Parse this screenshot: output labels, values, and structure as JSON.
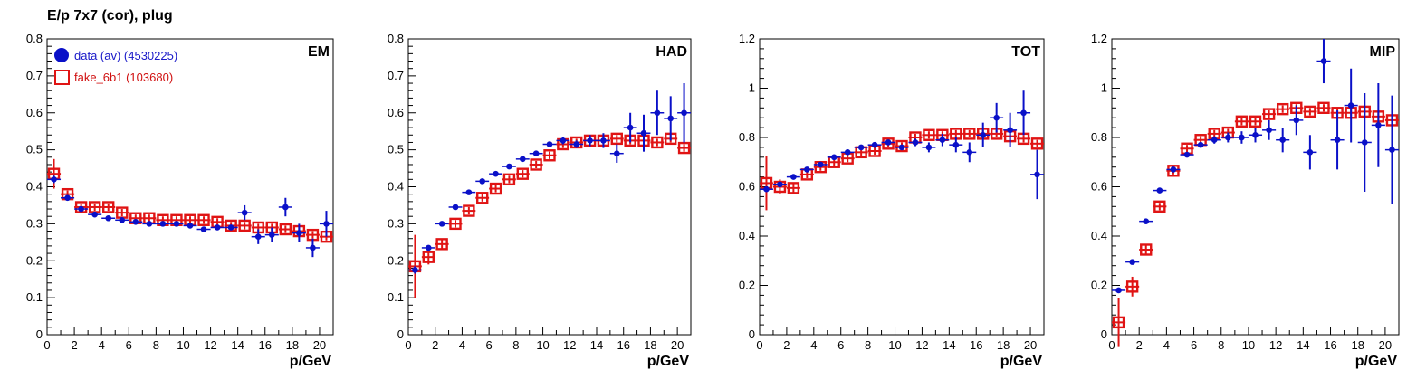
{
  "page_title": "E/p 7x7 (cor), plug",
  "colors": {
    "data": "#0a10c8",
    "fake": "#e01414",
    "axis": "#000000",
    "legend_data": "#1818c8",
    "legend_fake": "#d01010"
  },
  "legend": {
    "data_label": "data (av) (4530225)",
    "fake_label": "fake_6b1 (103680)"
  },
  "chart_data": [
    {
      "type": "scatter",
      "title": "EM",
      "xlabel": "p/GeV",
      "xlim": [
        0,
        21
      ],
      "ylim": [
        0,
        0.8
      ],
      "x_ticks": [
        0,
        2,
        4,
        6,
        8,
        10,
        12,
        14,
        16,
        18,
        20
      ],
      "y_ticks": [
        0,
        0.1,
        0.2,
        0.3,
        0.4,
        0.5,
        0.6,
        0.7,
        0.8
      ],
      "y_tick_labels": [
        "0",
        "0.1",
        "0.2",
        "0.3",
        "0.4",
        "0.5",
        "0.6",
        "0.7",
        "0.8"
      ],
      "x": [
        0.5,
        1.5,
        2.5,
        3.5,
        4.5,
        5.5,
        6.5,
        7.5,
        8.5,
        9.5,
        10.5,
        11.5,
        12.5,
        13.5,
        14.5,
        15.5,
        16.5,
        17.5,
        18.5,
        19.5,
        20.5
      ],
      "series": [
        {
          "name": "data (av) (4530225)",
          "values": [
            0.42,
            0.37,
            0.34,
            0.325,
            0.315,
            0.31,
            0.305,
            0.3,
            0.3,
            0.3,
            0.295,
            0.285,
            0.29,
            0.29,
            0.33,
            0.265,
            0.27,
            0.345,
            0.275,
            0.235,
            0.3
          ],
          "errors": [
            0.01,
            0.005,
            0.005,
            0.005,
            0.005,
            0.005,
            0.005,
            0.005,
            0.005,
            0.005,
            0.005,
            0.005,
            0.006,
            0.007,
            0.02,
            0.02,
            0.02,
            0.025,
            0.025,
            0.025,
            0.035
          ]
        },
        {
          "name": "fake_6b1 (103680)",
          "values": [
            0.435,
            0.38,
            0.345,
            0.345,
            0.345,
            0.33,
            0.315,
            0.315,
            0.31,
            0.31,
            0.31,
            0.31,
            0.305,
            0.295,
            0.295,
            0.29,
            0.29,
            0.285,
            0.28,
            0.27,
            0.265
          ],
          "errors": [
            0.04,
            0.01,
            0.01,
            0.01,
            0.01,
            0.01,
            0.01,
            0.01,
            0.01,
            0.01,
            0.01,
            0.01,
            0.01,
            0.01,
            0.01,
            0.01,
            0.01,
            0.01,
            0.01,
            0.01,
            0.01
          ]
        }
      ]
    },
    {
      "type": "scatter",
      "title": "HAD",
      "xlabel": "p/GeV",
      "xlim": [
        0,
        21
      ],
      "ylim": [
        0,
        0.8
      ],
      "x_ticks": [
        0,
        2,
        4,
        6,
        8,
        10,
        12,
        14,
        16,
        18,
        20
      ],
      "y_ticks": [
        0,
        0.1,
        0.2,
        0.3,
        0.4,
        0.5,
        0.6,
        0.7,
        0.8
      ],
      "y_tick_labels": [
        "0",
        "0.1",
        "0.2",
        "0.3",
        "0.4",
        "0.5",
        "0.6",
        "0.7",
        "0.8"
      ],
      "x": [
        0.5,
        1.5,
        2.5,
        3.5,
        4.5,
        5.5,
        6.5,
        7.5,
        8.5,
        9.5,
        10.5,
        11.5,
        12.5,
        13.5,
        14.5,
        15.5,
        16.5,
        17.5,
        18.5,
        19.5,
        20.5
      ],
      "series": [
        {
          "name": "data (av) (4530225)",
          "values": [
            0.175,
            0.235,
            0.3,
            0.345,
            0.385,
            0.415,
            0.435,
            0.455,
            0.475,
            0.49,
            0.515,
            0.525,
            0.515,
            0.525,
            0.525,
            0.49,
            0.56,
            0.545,
            0.6,
            0.585,
            0.6
          ],
          "errors": [
            0.01,
            0.005,
            0.005,
            0.005,
            0.005,
            0.005,
            0.005,
            0.005,
            0.005,
            0.005,
            0.005,
            0.01,
            0.01,
            0.015,
            0.02,
            0.025,
            0.04,
            0.05,
            0.06,
            0.06,
            0.08
          ]
        },
        {
          "name": "fake_6b1 (103680)",
          "values": [
            0.185,
            0.21,
            0.245,
            0.3,
            0.335,
            0.37,
            0.395,
            0.42,
            0.435,
            0.46,
            0.485,
            0.515,
            0.52,
            0.525,
            0.525,
            0.53,
            0.525,
            0.525,
            0.52,
            0.53,
            0.505
          ],
          "errors": [
            0.085,
            0.02,
            0.015,
            0.01,
            0.01,
            0.01,
            0.01,
            0.01,
            0.01,
            0.01,
            0.01,
            0.01,
            0.01,
            0.01,
            0.01,
            0.01,
            0.01,
            0.01,
            0.01,
            0.01,
            0.01
          ]
        }
      ]
    },
    {
      "type": "scatter",
      "title": "TOT",
      "xlabel": "p/GeV",
      "xlim": [
        0,
        21
      ],
      "ylim": [
        0,
        1.2
      ],
      "x_ticks": [
        0,
        2,
        4,
        6,
        8,
        10,
        12,
        14,
        16,
        18,
        20
      ],
      "y_ticks": [
        0,
        0.2,
        0.4,
        0.6,
        0.8,
        1.0,
        1.2
      ],
      "y_tick_labels": [
        "0",
        "0.2",
        "0.4",
        "0.6",
        "0.8",
        "1",
        "1.2"
      ],
      "x": [
        0.5,
        1.5,
        2.5,
        3.5,
        4.5,
        5.5,
        6.5,
        7.5,
        8.5,
        9.5,
        10.5,
        11.5,
        12.5,
        13.5,
        14.5,
        15.5,
        16.5,
        17.5,
        18.5,
        19.5,
        20.5
      ],
      "series": [
        {
          "name": "data (av) (4530225)",
          "values": [
            0.59,
            0.61,
            0.64,
            0.67,
            0.69,
            0.72,
            0.74,
            0.76,
            0.77,
            0.78,
            0.76,
            0.78,
            0.76,
            0.79,
            0.77,
            0.74,
            0.81,
            0.88,
            0.83,
            0.9,
            0.65
          ],
          "errors": [
            0.01,
            0.01,
            0.01,
            0.01,
            0.01,
            0.01,
            0.01,
            0.01,
            0.01,
            0.01,
            0.01,
            0.015,
            0.02,
            0.025,
            0.03,
            0.04,
            0.05,
            0.06,
            0.07,
            0.09,
            0.1
          ]
        },
        {
          "name": "fake_6b1 (103680)",
          "values": [
            0.615,
            0.6,
            0.595,
            0.65,
            0.68,
            0.7,
            0.715,
            0.74,
            0.745,
            0.775,
            0.765,
            0.8,
            0.81,
            0.81,
            0.815,
            0.815,
            0.815,
            0.815,
            0.805,
            0.795,
            0.775
          ],
          "errors": [
            0.11,
            0.03,
            0.02,
            0.015,
            0.015,
            0.015,
            0.015,
            0.015,
            0.015,
            0.015,
            0.015,
            0.015,
            0.015,
            0.015,
            0.015,
            0.015,
            0.015,
            0.015,
            0.015,
            0.015,
            0.015
          ]
        }
      ]
    },
    {
      "type": "scatter",
      "title": "MIP",
      "xlabel": "p/GeV",
      "xlim": [
        0,
        21
      ],
      "ylim": [
        0,
        1.2
      ],
      "x_ticks": [
        0,
        2,
        4,
        6,
        8,
        10,
        12,
        14,
        16,
        18,
        20
      ],
      "y_ticks": [
        0,
        0.2,
        0.4,
        0.6,
        0.8,
        1.0,
        1.2
      ],
      "y_tick_labels": [
        "0",
        "0.2",
        "0.4",
        "0.6",
        "0.8",
        "1",
        "1.2"
      ],
      "x": [
        0.5,
        1.5,
        2.5,
        3.5,
        4.5,
        5.5,
        6.5,
        7.5,
        8.5,
        9.5,
        10.5,
        11.5,
        12.5,
        13.5,
        14.5,
        15.5,
        16.5,
        17.5,
        18.5,
        19.5,
        20.5
      ],
      "series": [
        {
          "name": "data (av) (4530225)",
          "values": [
            0.18,
            0.295,
            0.46,
            0.585,
            0.67,
            0.73,
            0.77,
            0.79,
            0.8,
            0.8,
            0.81,
            0.83,
            0.79,
            0.87,
            0.74,
            1.11,
            0.79,
            0.93,
            0.78,
            0.85,
            0.75
          ],
          "errors": [
            0.005,
            0.005,
            0.005,
            0.005,
            0.005,
            0.01,
            0.01,
            0.015,
            0.02,
            0.025,
            0.03,
            0.04,
            0.05,
            0.06,
            0.07,
            0.09,
            0.12,
            0.15,
            0.2,
            0.17,
            0.22
          ]
        },
        {
          "name": "fake_6b1 (103680)",
          "values": [
            0.05,
            0.195,
            0.345,
            0.52,
            0.665,
            0.755,
            0.79,
            0.815,
            0.82,
            0.865,
            0.865,
            0.895,
            0.915,
            0.92,
            0.905,
            0.92,
            0.9,
            0.9,
            0.905,
            0.885,
            0.87
          ],
          "errors": [
            0.1,
            0.04,
            0.02,
            0.015,
            0.015,
            0.015,
            0.015,
            0.015,
            0.015,
            0.015,
            0.015,
            0.015,
            0.015,
            0.015,
            0.015,
            0.015,
            0.015,
            0.015,
            0.015,
            0.015,
            0.015
          ]
        }
      ]
    }
  ]
}
